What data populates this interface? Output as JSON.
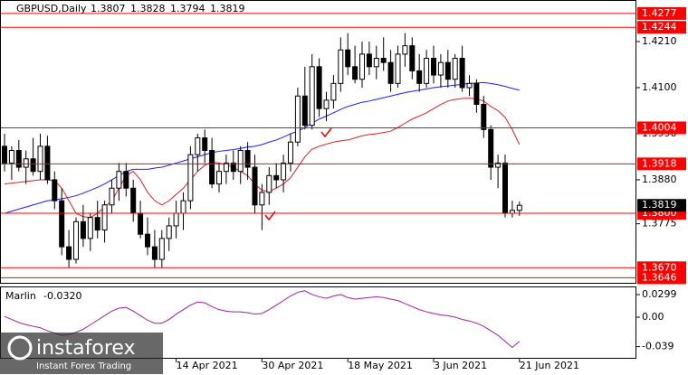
{
  "chart_data": [
    {
      "type": "candlestick",
      "symbol": "GBPUSD,Daily",
      "categories": [
        null,
        null,
        null,
        null,
        null,
        null,
        null,
        null,
        null,
        null,
        null,
        null,
        null,
        null,
        null,
        null,
        null,
        null,
        null,
        null,
        null,
        null,
        null,
        null,
        "14 Apr 2021",
        null,
        null,
        null,
        null,
        null,
        null,
        null,
        null,
        null,
        null,
        null,
        "30 Apr 2021",
        null,
        null,
        null,
        null,
        null,
        null,
        null,
        null,
        null,
        null,
        null,
        "18 May 2021",
        null,
        null,
        null,
        null,
        null,
        null,
        null,
        null,
        null,
        null,
        null,
        "3 Jun 2021",
        null,
        null,
        null,
        null,
        null,
        null,
        null,
        null,
        null,
        null,
        null,
        "21 Jun 2021"
      ],
      "candles": [
        [
          1.396,
          1.399,
          1.39,
          1.392
        ],
        [
          1.392,
          1.396,
          1.388,
          1.395
        ],
        [
          1.395,
          1.3975,
          1.39,
          1.391
        ],
        [
          1.391,
          1.395,
          1.387,
          1.393
        ],
        [
          1.393,
          1.398,
          1.389,
          1.39
        ],
        [
          1.39,
          1.399,
          1.388,
          1.396
        ],
        [
          1.396,
          1.3985,
          1.387,
          1.388
        ],
        [
          1.388,
          1.39,
          1.381,
          1.383
        ],
        [
          1.383,
          1.386,
          1.37,
          1.372
        ],
        [
          1.372,
          1.376,
          1.367,
          1.369
        ],
        [
          1.369,
          1.379,
          1.368,
          1.378
        ],
        [
          1.378,
          1.382,
          1.372,
          1.374
        ],
        [
          1.374,
          1.38,
          1.371,
          1.379
        ],
        [
          1.379,
          1.383,
          1.374,
          1.376
        ],
        [
          1.376,
          1.383,
          1.373,
          1.382
        ],
        [
          1.382,
          1.388,
          1.38,
          1.386
        ],
        [
          1.386,
          1.392,
          1.383,
          1.39
        ],
        [
          1.39,
          1.392,
          1.384,
          1.386
        ],
        [
          1.386,
          1.388,
          1.378,
          1.38
        ],
        [
          1.38,
          1.383,
          1.374,
          1.375
        ],
        [
          1.375,
          1.379,
          1.37,
          1.372
        ],
        [
          1.372,
          1.376,
          1.367,
          1.369
        ],
        [
          1.369,
          1.376,
          1.367,
          1.374
        ],
        [
          1.374,
          1.379,
          1.371,
          1.377
        ],
        [
          1.377,
          1.383,
          1.374,
          1.38
        ],
        [
          1.38,
          1.385,
          1.376,
          1.383
        ],
        [
          1.383,
          1.396,
          1.381,
          1.394
        ],
        [
          1.394,
          1.399,
          1.39,
          1.398
        ],
        [
          1.398,
          1.4,
          1.392,
          1.395
        ],
        [
          1.395,
          1.398,
          1.386,
          1.387
        ],
        [
          1.387,
          1.392,
          1.385,
          1.39
        ],
        [
          1.39,
          1.394,
          1.387,
          1.392
        ],
        [
          1.392,
          1.395,
          1.388,
          1.39
        ],
        [
          1.39,
          1.396,
          1.387,
          1.395
        ],
        [
          1.395,
          1.397,
          1.388,
          1.391
        ],
        [
          1.391,
          1.394,
          1.38,
          1.382
        ],
        [
          1.382,
          1.387,
          1.376,
          1.385
        ],
        [
          1.385,
          1.391,
          1.382,
          1.389
        ],
        [
          1.389,
          1.392,
          1.386,
          1.388
        ],
        [
          1.388,
          1.394,
          1.385,
          1.392
        ],
        [
          1.392,
          1.399,
          1.39,
          1.397
        ],
        [
          1.397,
          1.41,
          1.396,
          1.408
        ],
        [
          1.408,
          1.415,
          1.4,
          1.401
        ],
        [
          1.401,
          1.418,
          1.4,
          1.415
        ],
        [
          1.415,
          1.417,
          1.403,
          1.405
        ],
        [
          1.405,
          1.409,
          1.402,
          1.407
        ],
        [
          1.407,
          1.413,
          1.405,
          1.411
        ],
        [
          1.411,
          1.422,
          1.409,
          1.419
        ],
        [
          1.419,
          1.423,
          1.413,
          1.415
        ],
        [
          1.415,
          1.42,
          1.411,
          1.412
        ],
        [
          1.412,
          1.421,
          1.41,
          1.418
        ],
        [
          1.418,
          1.421,
          1.413,
          1.415
        ],
        [
          1.415,
          1.42,
          1.412,
          1.417
        ],
        [
          1.417,
          1.422,
          1.414,
          1.416
        ],
        [
          1.416,
          1.419,
          1.409,
          1.411
        ],
        [
          1.411,
          1.42,
          1.41,
          1.418
        ],
        [
          1.418,
          1.423,
          1.415,
          1.42
        ],
        [
          1.42,
          1.422,
          1.412,
          1.414
        ],
        [
          1.414,
          1.418,
          1.409,
          1.411
        ],
        [
          1.411,
          1.419,
          1.41,
          1.417
        ],
        [
          1.417,
          1.42,
          1.411,
          1.413
        ],
        [
          1.413,
          1.418,
          1.41,
          1.416
        ],
        [
          1.416,
          1.419,
          1.41,
          1.412
        ],
        [
          1.412,
          1.418,
          1.41,
          1.417
        ],
        [
          1.417,
          1.42,
          1.409,
          1.41
        ],
        [
          1.41,
          1.413,
          1.408,
          1.411
        ],
        [
          1.411,
          1.412,
          1.404,
          1.406
        ],
        [
          1.406,
          1.408,
          1.398,
          1.4
        ],
        [
          1.4,
          1.401,
          1.388,
          1.391
        ],
        [
          1.391,
          1.394,
          1.386,
          1.392
        ],
        [
          1.392,
          1.394,
          1.379,
          1.38
        ],
        [
          1.38,
          1.383,
          1.379,
          1.3807
        ],
        [
          1.3807,
          1.3828,
          1.3794,
          1.3819
        ]
      ],
      "up_color": "#ffffff",
      "down_color": "#000000",
      "series": [
        {
          "color": "#1c1cff",
          "values": [
            1.38,
            1.3805,
            1.381,
            1.3815,
            1.382,
            1.3825,
            1.383,
            1.3832,
            1.3835,
            1.3838,
            1.3842,
            1.3848,
            1.3855,
            1.3862,
            1.387,
            1.388,
            1.389,
            1.39,
            1.3905,
            1.3905,
            1.3905,
            1.3908,
            1.391,
            1.3915,
            1.392,
            1.3925,
            1.393,
            1.3935,
            1.394,
            1.3945,
            1.3948,
            1.395,
            1.3952,
            1.3955,
            1.3958,
            1.396,
            1.3964,
            1.397,
            1.3975,
            1.3982,
            1.399,
            1.3996,
            1.4005,
            1.4015,
            1.4025,
            1.4032,
            1.404,
            1.4048,
            1.4055,
            1.406,
            1.4065,
            1.4068,
            1.4072,
            1.4076,
            1.408,
            1.4084,
            1.4088,
            1.4091,
            1.4094,
            1.4097,
            1.41,
            1.4102,
            1.4104,
            1.4106,
            1.4108,
            1.411,
            1.4111,
            1.4112,
            1.411,
            1.4107,
            1.4103,
            1.4098,
            1.4094
          ]
        },
        {
          "color": "#e02020",
          "values": [
            1.387,
            1.3872,
            1.3874,
            1.3876,
            1.3878,
            1.388,
            1.388,
            1.3878,
            1.386,
            1.383,
            1.38,
            1.3792,
            1.379,
            1.38,
            1.3815,
            1.383,
            1.386,
            1.389,
            1.39,
            1.388,
            1.385,
            1.383,
            1.382,
            1.383,
            1.3845,
            1.386,
            1.388,
            1.39,
            1.3915,
            1.3922,
            1.392,
            1.3915,
            1.391,
            1.39,
            1.389,
            1.387,
            1.3855,
            1.3852,
            1.386,
            1.387,
            1.3885,
            1.391,
            1.3935,
            1.3953,
            1.396,
            1.3965,
            1.397,
            1.3973,
            1.3975,
            1.398,
            1.3985,
            1.3988,
            1.399,
            1.3993,
            1.3996,
            1.4005,
            1.4015,
            1.4025,
            1.4032,
            1.404,
            1.405,
            1.406,
            1.4068,
            1.4072,
            1.4074,
            1.4075,
            1.4073,
            1.4068,
            1.4055,
            1.4045,
            1.4029,
            1.4,
            1.3964
          ]
        }
      ],
      "ylim": [
        1.3634,
        1.43092
      ],
      "yticks": [
        {
          "value": 1.421,
          "label": "1.4210"
        },
        {
          "value": 1.41,
          "label": "1.4100"
        },
        {
          "value": 1.399,
          "label": "1.3990"
        },
        {
          "value": 1.388,
          "label": "1.3880"
        },
        1.3775
      ],
      "levels": [
        1.4277,
        1.4244,
        1.4004,
        1.3918,
        {
          "value": 1.38,
          "label": "1.3800"
        },
        {
          "value": 1.367,
          "label": "1.3670"
        },
        1.3646
      ],
      "level_color": "#ff0000"
    },
    {
      "type": "line",
      "name": "Marlin",
      "last_label": "-0.0320",
      "color": "#a020a0",
      "values": [
        0.001,
        -0.003,
        -0.007,
        -0.01,
        -0.012,
        -0.014,
        -0.018,
        -0.021,
        -0.024,
        -0.023,
        -0.02,
        -0.016,
        -0.01,
        -0.004,
        0.002,
        0.008,
        0.012,
        0.013,
        0.008,
        0.002,
        -0.004,
        -0.008,
        -0.008,
        -0.003,
        0.004,
        0.01,
        0.016,
        0.02,
        0.019,
        0.014,
        0.01,
        0.008,
        0.007,
        0.007,
        0.006,
        0.004,
        0.005,
        0.01,
        0.016,
        0.022,
        0.028,
        0.033,
        0.035,
        0.03,
        0.027,
        0.025,
        0.028,
        0.03,
        0.026,
        0.024,
        0.025,
        0.026,
        0.027,
        0.026,
        0.024,
        0.022,
        0.018,
        0.014,
        0.01,
        0.007,
        0.005,
        0.003,
        0.002,
        0.0,
        -0.003,
        -0.005,
        -0.008,
        -0.012,
        -0.018,
        -0.024,
        -0.032,
        -0.04,
        -0.032
      ],
      "ylim": [
        -0.055,
        0.0395
      ],
      "yticks": [
        0.0299,
        {
          "value": 0,
          "label": "0.00"
        },
        -0.039
      ]
    }
  ],
  "logo": {
    "brand": "instaforex",
    "tagline": "Instant Forex Trading"
  }
}
